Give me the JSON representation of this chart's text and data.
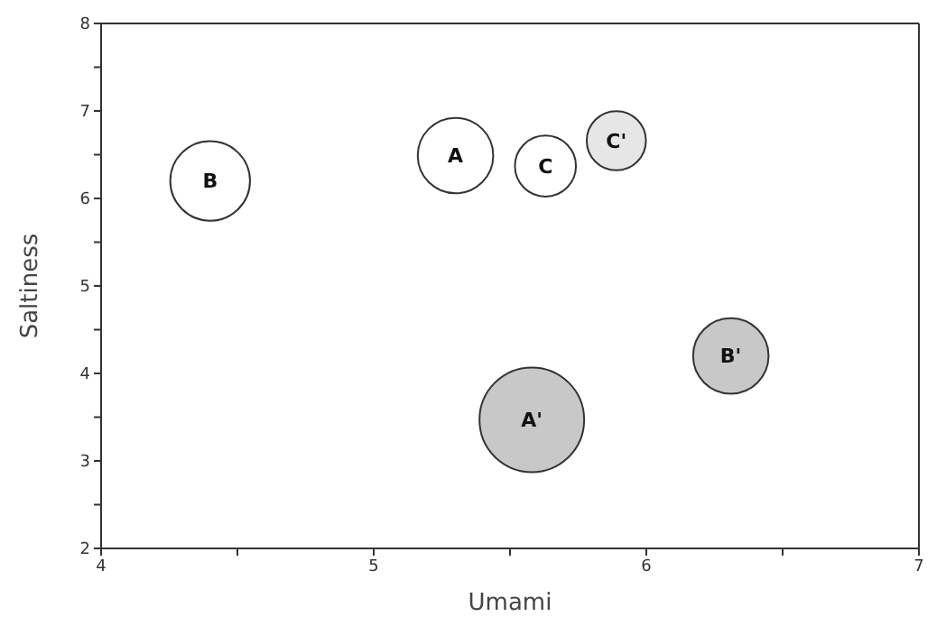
{
  "chart_data": {
    "type": "bubble",
    "xlabel": "Umami",
    "ylabel": "Saltiness",
    "xlim": [
      4,
      7
    ],
    "xticks": [
      4,
      {
        "value": 4.5,
        "label": null
      },
      5,
      {
        "value": 5.5,
        "label": null
      },
      6,
      {
        "value": 6.5,
        "label": null
      },
      7
    ],
    "ylim": [
      2,
      8
    ],
    "yticks": [
      2,
      {
        "value": 2.5,
        "label": null
      },
      3,
      {
        "value": 3.5,
        "label": null
      },
      4,
      {
        "value": 4.5,
        "label": null
      },
      5,
      {
        "value": 5.5,
        "label": null
      },
      6,
      {
        "value": 6.5,
        "label": null
      },
      7,
      {
        "value": 7.5,
        "label": null
      },
      8
    ],
    "legend": false,
    "series": [
      {
        "name": "B",
        "color": "#ffffff",
        "x": [
          4.4
        ],
        "values": [
          6.2
        ],
        "sizes": [
          0.58
        ]
      },
      {
        "name": "A",
        "color": "#ffffff",
        "x": [
          5.3
        ],
        "values": [
          6.49
        ],
        "sizes": [
          0.52
        ]
      },
      {
        "name": "C",
        "color": "#ffffff",
        "x": [
          5.63
        ],
        "values": [
          6.37
        ],
        "sizes": [
          0.34
        ]
      },
      {
        "name": "C'",
        "color": "#e6e6e6",
        "x": [
          5.89
        ],
        "values": [
          6.66
        ],
        "sizes": [
          0.32
        ]
      },
      {
        "name": "B'",
        "color": "#c8c8c8",
        "x": [
          6.31
        ],
        "values": [
          4.2
        ],
        "sizes": [
          0.52
        ]
      },
      {
        "name": "A'",
        "color": "#c8c8c8",
        "x": [
          5.58
        ],
        "values": [
          3.47
        ],
        "sizes": [
          1
        ]
      }
    ]
  }
}
